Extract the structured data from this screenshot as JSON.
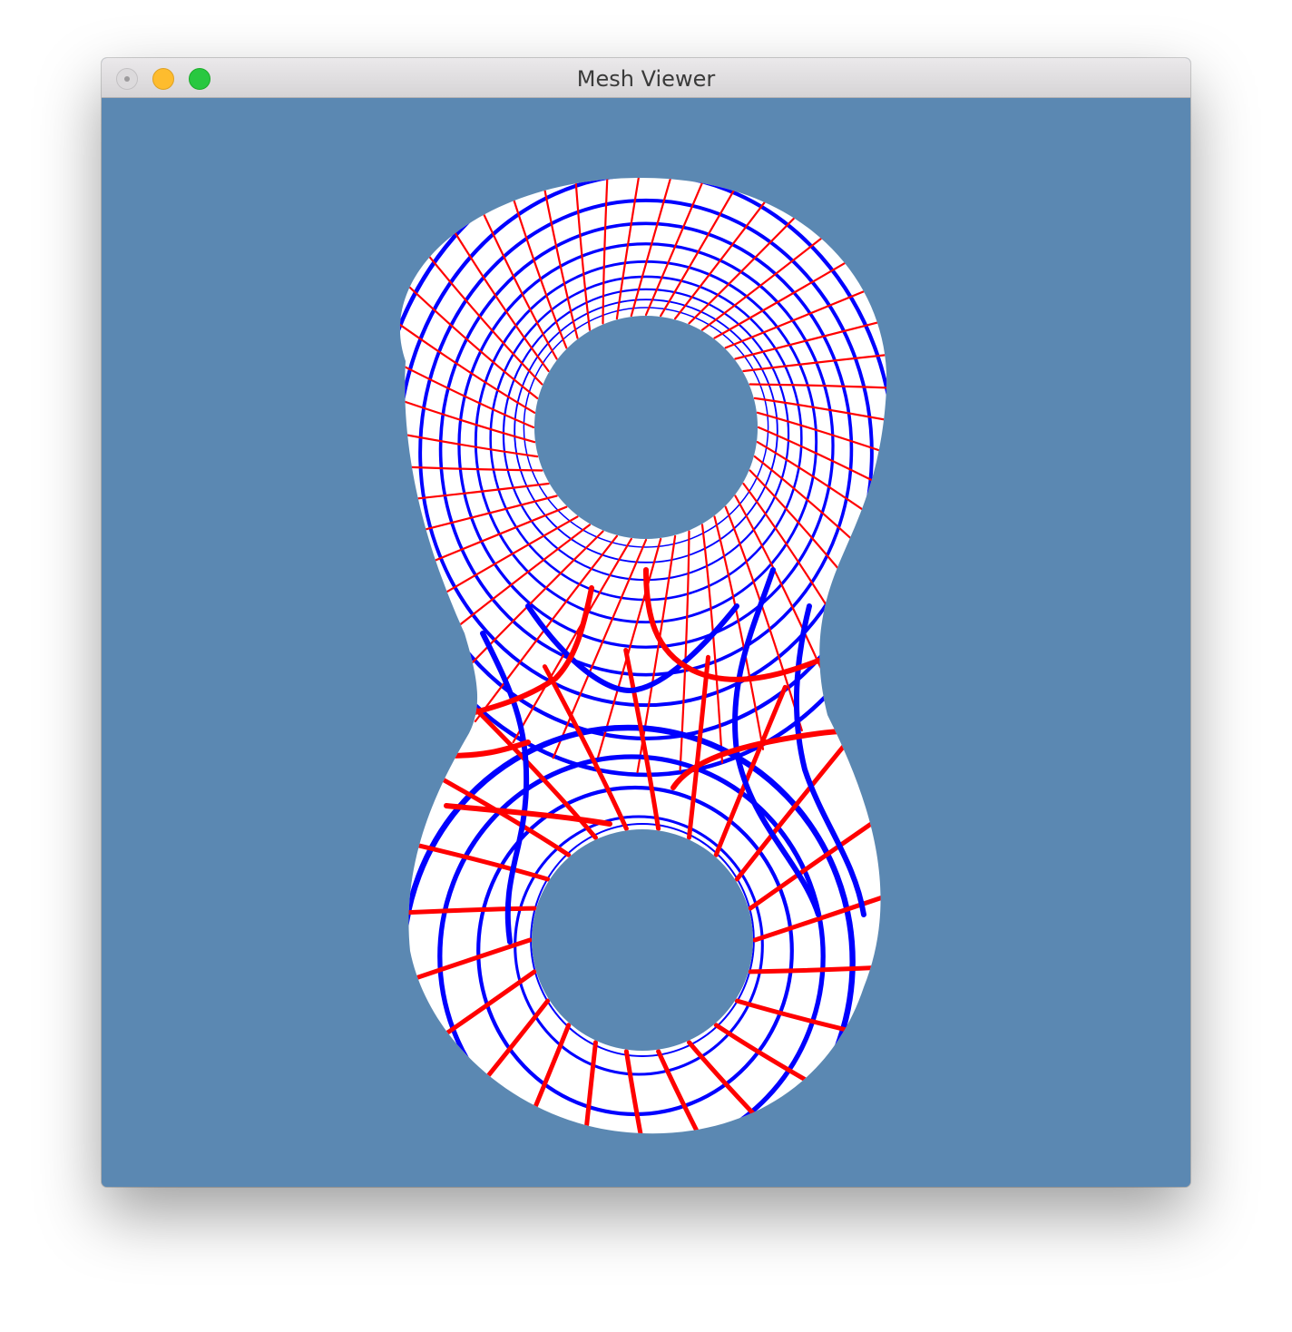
{
  "window": {
    "title": "Mesh Viewer"
  },
  "viewport": {
    "background_color": "#5b88b2",
    "surface_color": "#ffffff",
    "line_colors": [
      "#ff0000",
      "#0000ff"
    ]
  }
}
